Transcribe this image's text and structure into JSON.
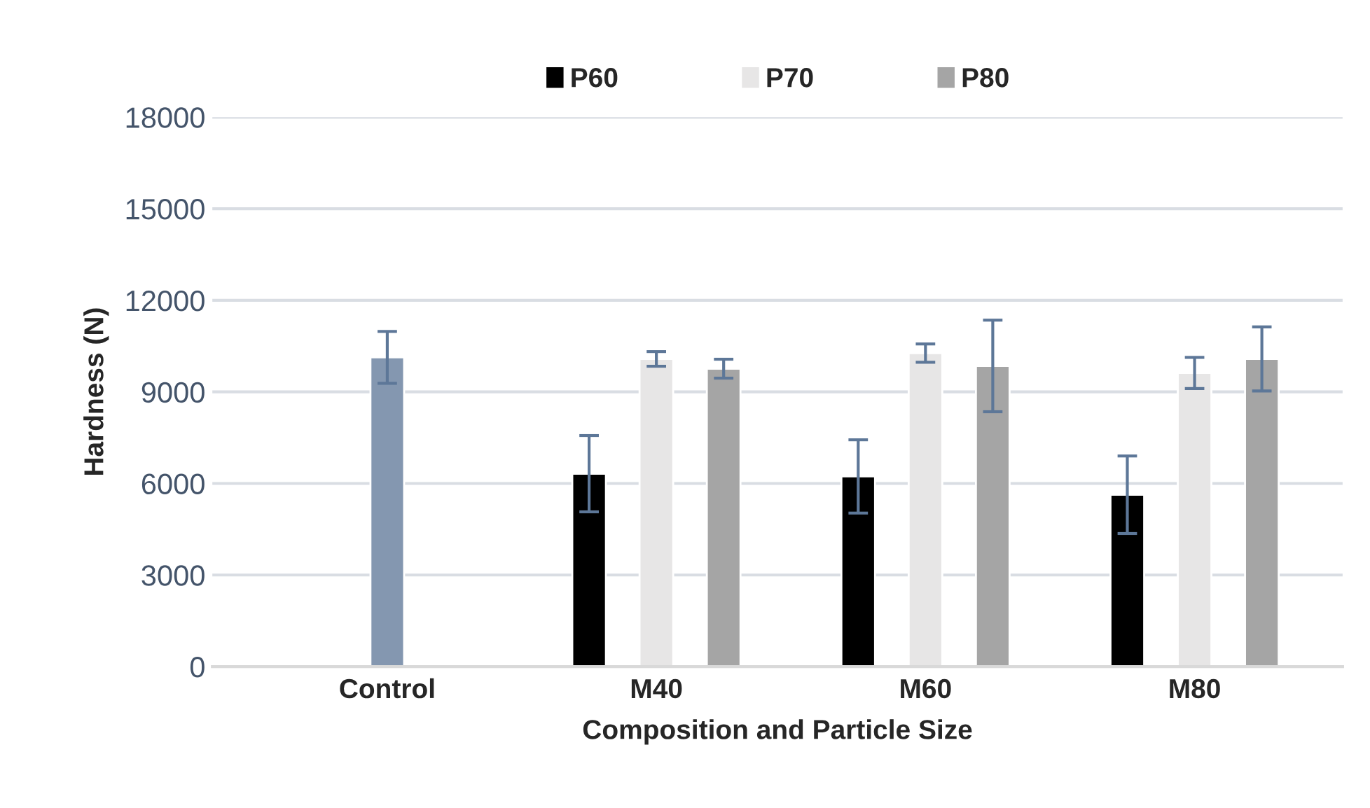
{
  "chart_data": {
    "type": "bar",
    "xlabel": "Composition and Particle Size",
    "ylabel": "Hardness (N)",
    "categories": [
      "Control",
      "M40",
      "M60",
      "M80"
    ],
    "series": [
      {
        "name": "P60",
        "color": "#000000",
        "values": [
          null,
          6320,
          6230,
          5630
        ],
        "errors": [
          null,
          1250,
          1200,
          1270
        ]
      },
      {
        "name": "P70",
        "color": "#e7e6e6",
        "colors": [
          "#8497b0",
          "#e7e6e6",
          "#e7e6e6",
          "#e7e6e6"
        ],
        "values": [
          10130,
          10080,
          10270,
          9620
        ],
        "errors": [
          850,
          240,
          300,
          510
        ]
      },
      {
        "name": "P80",
        "color": "#a5a5a5",
        "values": [
          null,
          9760,
          9850,
          10080
        ],
        "errors": [
          null,
          310,
          1500,
          1050
        ]
      }
    ],
    "ylim": [
      0,
      18000
    ],
    "yticks": [
      0,
      3000,
      6000,
      9000,
      12000,
      15000,
      18000
    ],
    "grid": "y",
    "legend": "top"
  }
}
